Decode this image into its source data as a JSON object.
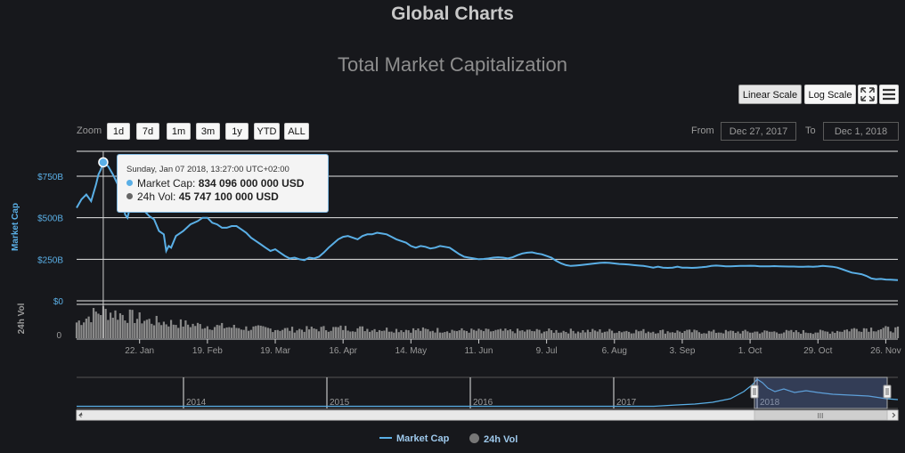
{
  "page": {
    "title": "Global Charts"
  },
  "chart_data": {
    "type": "line",
    "title": "Total Market Capitalization",
    "ylabel": "Market Cap",
    "ylabel_volume": "24h Vol",
    "ylim": [
      0,
      900
    ],
    "y_ticks": [
      {
        "value": 0,
        "label": "$0"
      },
      {
        "value": 250,
        "label": "$250B"
      },
      {
        "value": 500,
        "label": "$500B"
      },
      {
        "value": 750,
        "label": "$750B"
      }
    ],
    "volume_ticks": [
      {
        "value": 0,
        "label": "0"
      }
    ],
    "x_range_days": [
      0,
      339
    ],
    "x_ticks": [
      {
        "day": 26,
        "label": "22. Jan"
      },
      {
        "day": 54,
        "label": "19. Feb"
      },
      {
        "day": 82,
        "label": "19. Mar"
      },
      {
        "day": 110,
        "label": "16. Apr"
      },
      {
        "day": 138,
        "label": "14. May"
      },
      {
        "day": 166,
        "label": "11. Jun"
      },
      {
        "day": 194,
        "label": "9. Jul"
      },
      {
        "day": 222,
        "label": "6. Aug"
      },
      {
        "day": 250,
        "label": "3. Sep"
      },
      {
        "day": 278,
        "label": "1. Oct"
      },
      {
        "day": 306,
        "label": "29. Oct"
      },
      {
        "day": 334,
        "label": "26. Nov"
      }
    ],
    "series": [
      {
        "name": "Market Cap",
        "unit": "billion USD",
        "color": "#5aafe6",
        "points": [
          [
            0,
            560
          ],
          [
            2,
            610
          ],
          [
            4,
            640
          ],
          [
            6,
            600
          ],
          [
            8,
            700
          ],
          [
            9,
            760
          ],
          [
            10,
            790
          ],
          [
            11,
            834
          ],
          [
            13,
            810
          ],
          [
            15,
            760
          ],
          [
            17,
            700
          ],
          [
            19,
            620
          ],
          [
            20,
            520
          ],
          [
            21,
            500
          ],
          [
            22,
            560
          ],
          [
            24,
            620
          ],
          [
            26,
            600
          ],
          [
            28,
            540
          ],
          [
            30,
            510
          ],
          [
            32,
            490
          ],
          [
            34,
            420
          ],
          [
            36,
            400
          ],
          [
            37,
            300
          ],
          [
            38,
            330
          ],
          [
            39,
            320
          ],
          [
            41,
            390
          ],
          [
            44,
            420
          ],
          [
            47,
            460
          ],
          [
            50,
            480
          ],
          [
            52,
            500
          ],
          [
            54,
            500
          ],
          [
            56,
            470
          ],
          [
            58,
            460
          ],
          [
            60,
            440
          ],
          [
            62,
            440
          ],
          [
            64,
            450
          ],
          [
            66,
            450
          ],
          [
            68,
            430
          ],
          [
            70,
            410
          ],
          [
            72,
            380
          ],
          [
            74,
            360
          ],
          [
            76,
            340
          ],
          [
            78,
            320
          ],
          [
            80,
            300
          ],
          [
            82,
            310
          ],
          [
            84,
            290
          ],
          [
            86,
            270
          ],
          [
            88,
            255
          ],
          [
            90,
            260
          ],
          [
            92,
            250
          ],
          [
            94,
            245
          ],
          [
            96,
            260
          ],
          [
            98,
            255
          ],
          [
            100,
            265
          ],
          [
            102,
            290
          ],
          [
            104,
            320
          ],
          [
            106,
            345
          ],
          [
            108,
            370
          ],
          [
            110,
            385
          ],
          [
            112,
            390
          ],
          [
            114,
            380
          ],
          [
            116,
            370
          ],
          [
            118,
            390
          ],
          [
            120,
            400
          ],
          [
            122,
            400
          ],
          [
            124,
            410
          ],
          [
            126,
            405
          ],
          [
            128,
            400
          ],
          [
            130,
            385
          ],
          [
            132,
            370
          ],
          [
            134,
            360
          ],
          [
            136,
            350
          ],
          [
            138,
            330
          ],
          [
            140,
            320
          ],
          [
            142,
            330
          ],
          [
            144,
            325
          ],
          [
            146,
            315
          ],
          [
            148,
            320
          ],
          [
            150,
            330
          ],
          [
            152,
            325
          ],
          [
            154,
            320
          ],
          [
            156,
            300
          ],
          [
            158,
            280
          ],
          [
            160,
            265
          ],
          [
            162,
            260
          ],
          [
            164,
            255
          ],
          [
            166,
            250
          ],
          [
            168,
            252
          ],
          [
            170,
            255
          ],
          [
            172,
            260
          ],
          [
            174,
            262
          ],
          [
            176,
            260
          ],
          [
            178,
            255
          ],
          [
            180,
            262
          ],
          [
            182,
            275
          ],
          [
            184,
            285
          ],
          [
            186,
            290
          ],
          [
            188,
            292
          ],
          [
            190,
            285
          ],
          [
            192,
            280
          ],
          [
            194,
            270
          ],
          [
            196,
            260
          ],
          [
            198,
            240
          ],
          [
            200,
            225
          ],
          [
            202,
            215
          ],
          [
            204,
            210
          ],
          [
            206,
            212
          ],
          [
            208,
            215
          ],
          [
            210,
            218
          ],
          [
            212,
            222
          ],
          [
            214,
            225
          ],
          [
            216,
            228
          ],
          [
            218,
            230
          ],
          [
            220,
            228
          ],
          [
            222,
            225
          ],
          [
            224,
            222
          ],
          [
            226,
            220
          ],
          [
            228,
            218
          ],
          [
            230,
            215
          ],
          [
            232,
            212
          ],
          [
            234,
            210
          ],
          [
            236,
            205
          ],
          [
            238,
            200
          ],
          [
            240,
            205
          ],
          [
            242,
            200
          ],
          [
            244,
            198
          ],
          [
            246,
            200
          ],
          [
            248,
            205
          ],
          [
            250,
            200
          ],
          [
            252,
            200
          ],
          [
            254,
            198
          ],
          [
            256,
            200
          ],
          [
            258,
            202
          ],
          [
            260,
            205
          ],
          [
            262,
            210
          ],
          [
            264,
            212
          ],
          [
            266,
            210
          ],
          [
            268,
            208
          ],
          [
            270,
            208
          ],
          [
            272,
            209
          ],
          [
            274,
            210
          ],
          [
            276,
            210
          ],
          [
            278,
            211
          ],
          [
            280,
            210
          ],
          [
            282,
            208
          ],
          [
            284,
            208
          ],
          [
            286,
            208
          ],
          [
            288,
            209
          ],
          [
            290,
            208
          ],
          [
            292,
            207
          ],
          [
            294,
            206
          ],
          [
            296,
            206
          ],
          [
            298,
            205
          ],
          [
            300,
            205
          ],
          [
            302,
            206
          ],
          [
            304,
            205
          ],
          [
            306,
            207
          ],
          [
            308,
            210
          ],
          [
            310,
            208
          ],
          [
            312,
            205
          ],
          [
            314,
            200
          ],
          [
            316,
            190
          ],
          [
            318,
            180
          ],
          [
            320,
            170
          ],
          [
            322,
            165
          ],
          [
            324,
            160
          ],
          [
            326,
            150
          ],
          [
            328,
            135
          ],
          [
            330,
            130
          ],
          [
            332,
            132
          ],
          [
            334,
            128
          ],
          [
            336,
            127
          ],
          [
            339,
            125
          ]
        ]
      },
      {
        "name": "24h Vol",
        "color": "#888888",
        "volume_profile": [
          [
            0,
            0.55
          ],
          [
            10,
            0.95
          ],
          [
            20,
            0.8
          ],
          [
            30,
            0.6
          ],
          [
            50,
            0.45
          ],
          [
            70,
            0.35
          ],
          [
            90,
            0.3
          ],
          [
            110,
            0.35
          ],
          [
            130,
            0.3
          ],
          [
            150,
            0.28
          ],
          [
            170,
            0.25
          ],
          [
            200,
            0.25
          ],
          [
            230,
            0.25
          ],
          [
            260,
            0.22
          ],
          [
            290,
            0.22
          ],
          [
            310,
            0.22
          ],
          [
            325,
            0.35
          ],
          [
            339,
            0.3
          ]
        ]
      }
    ],
    "navigator": {
      "year_labels": [
        "2014",
        "2015",
        "2016",
        "2017",
        "2018"
      ]
    }
  },
  "toolbar": {
    "linear_label": "Linear Scale",
    "log_label": "Log Scale"
  },
  "zoom": {
    "label": "Zoom",
    "buttons": [
      "1d",
      "7d",
      "1m",
      "3m",
      "1y",
      "YTD",
      "ALL"
    ]
  },
  "range": {
    "from_label": "From",
    "from_value": "Dec 27, 2017",
    "to_label": "To",
    "to_value": "Dec 1, 2018"
  },
  "tooltip": {
    "date": "Sunday, Jan 07 2018, 13:27:00 UTC+02:00",
    "market_cap_label": "Market Cap:",
    "market_cap_value": "834 096 000 000 USD",
    "volume_label": "24h Vol:",
    "volume_value": "45 747 100 000 USD"
  },
  "legend": {
    "market_cap": "Market Cap",
    "volume": "24h Vol"
  },
  "navigator_scrollbar": {
    "grip": "III"
  },
  "colors": {
    "accent": "#5aafe6",
    "background": "#17181c",
    "grid": "#e6e6e6"
  }
}
